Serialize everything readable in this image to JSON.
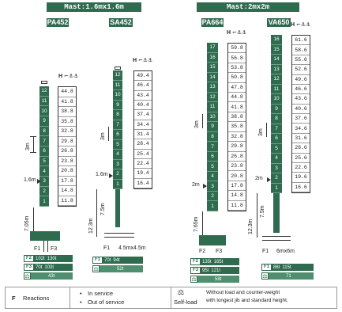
{
  "headers": {
    "left": "Mast:1.6mx1.6m",
    "right": "Mast:2mx2m"
  },
  "cranes": [
    {
      "model": "PA452",
      "sections": [
        "12",
        "11",
        "10",
        "9",
        "8",
        "7",
        "6",
        "5",
        "4",
        "3",
        "2",
        "1"
      ],
      "heights": [
        "44.8",
        "41.8",
        "38.8",
        "35.8",
        "32.8",
        "29.8",
        "26.8",
        "23.8",
        "20.8",
        "17.8",
        "14.8",
        "11.8"
      ],
      "dim_section": "3m",
      "dim_mast": "1.6m",
      "dim_base": "7.05m",
      "reactions": [
        {
          "key": "F2",
          "in_service": "102t",
          "out_service": "130t"
        },
        {
          "key": "F3",
          "in_service": "70t",
          "out_service": "103t"
        }
      ],
      "self_load": "43t"
    },
    {
      "model": "SA452",
      "sections": [
        "12",
        "11",
        "10",
        "9",
        "8",
        "7",
        "6",
        "5",
        "4",
        "3",
        "2",
        "1"
      ],
      "heights": [
        "49.4",
        "46.4",
        "43.4",
        "40.4",
        "37.4",
        "34.4",
        "31.4",
        "28.4",
        "25.4",
        "22.4",
        "19.4",
        "16.4"
      ],
      "dim_section": "3m",
      "dim_mast": "1.6m",
      "dim_lower": "7.5m",
      "dim_total": "12.3m",
      "dim_base": "4.5mx4.5m",
      "reactions": [
        {
          "key": "F1",
          "in_service": "70t",
          "out_service": "94t"
        }
      ],
      "self_load": "52t"
    },
    {
      "model": "PA664",
      "sections": [
        "17",
        "16",
        "15",
        "14",
        "13",
        "12",
        "11",
        "10",
        "9",
        "8",
        "7",
        "6",
        "5",
        "4",
        "3",
        "2",
        "1"
      ],
      "heights": [
        "59.8",
        "56.8",
        "53.8",
        "50.8",
        "47.8",
        "44.8",
        "41.8",
        "38.8",
        "35.8",
        "32.8",
        "29.8",
        "26.8",
        "23.8",
        "20.8",
        "17.8",
        "14.8",
        "11.8"
      ],
      "dim_section": "3m",
      "dim_mast": "2m",
      "dim_base": "7.65m",
      "reactions": [
        {
          "key": "F2",
          "in_service": "135t",
          "out_service": "165t"
        },
        {
          "key": "F3",
          "in_service": "95t",
          "out_service": "121t"
        }
      ],
      "self_load": "58t"
    },
    {
      "model": "VA650",
      "sections": [
        "16",
        "15",
        "14",
        "13",
        "12",
        "11",
        "10",
        "9",
        "8",
        "7",
        "6",
        "5",
        "4",
        "3",
        "2",
        "1"
      ],
      "heights": [
        "61.6",
        "58.6",
        "55.6",
        "52.6",
        "49.6",
        "46.6",
        "43.6",
        "40.6",
        "37.6",
        "34.6",
        "31.6",
        "28.6",
        "25.6",
        "22.6",
        "19.6",
        "16.6"
      ],
      "dim_section": "3m",
      "dim_mast": "2m",
      "dim_lower": "7.5m",
      "dim_total": "12.3m",
      "dim_base": "6mx6m",
      "reactions": [
        {
          "key": "F1",
          "in_service": "86t",
          "out_service": "115t"
        }
      ],
      "self_load": "71"
    }
  ],
  "labels": {
    "h": "H",
    "f1": "F1",
    "f2": "F2",
    "f3": "F3"
  },
  "legend": {
    "f_label": "F",
    "reactions": "Reactions",
    "in_service": "In service",
    "out_of_service": "Out of service",
    "self_load": "Self-load",
    "note_line1": "Without load and counter-weight",
    "note_line2": "with longest jib and standard height."
  },
  "colors": {
    "mast_green": "#2e6b4f",
    "light_green": "#8fbfa5"
  }
}
